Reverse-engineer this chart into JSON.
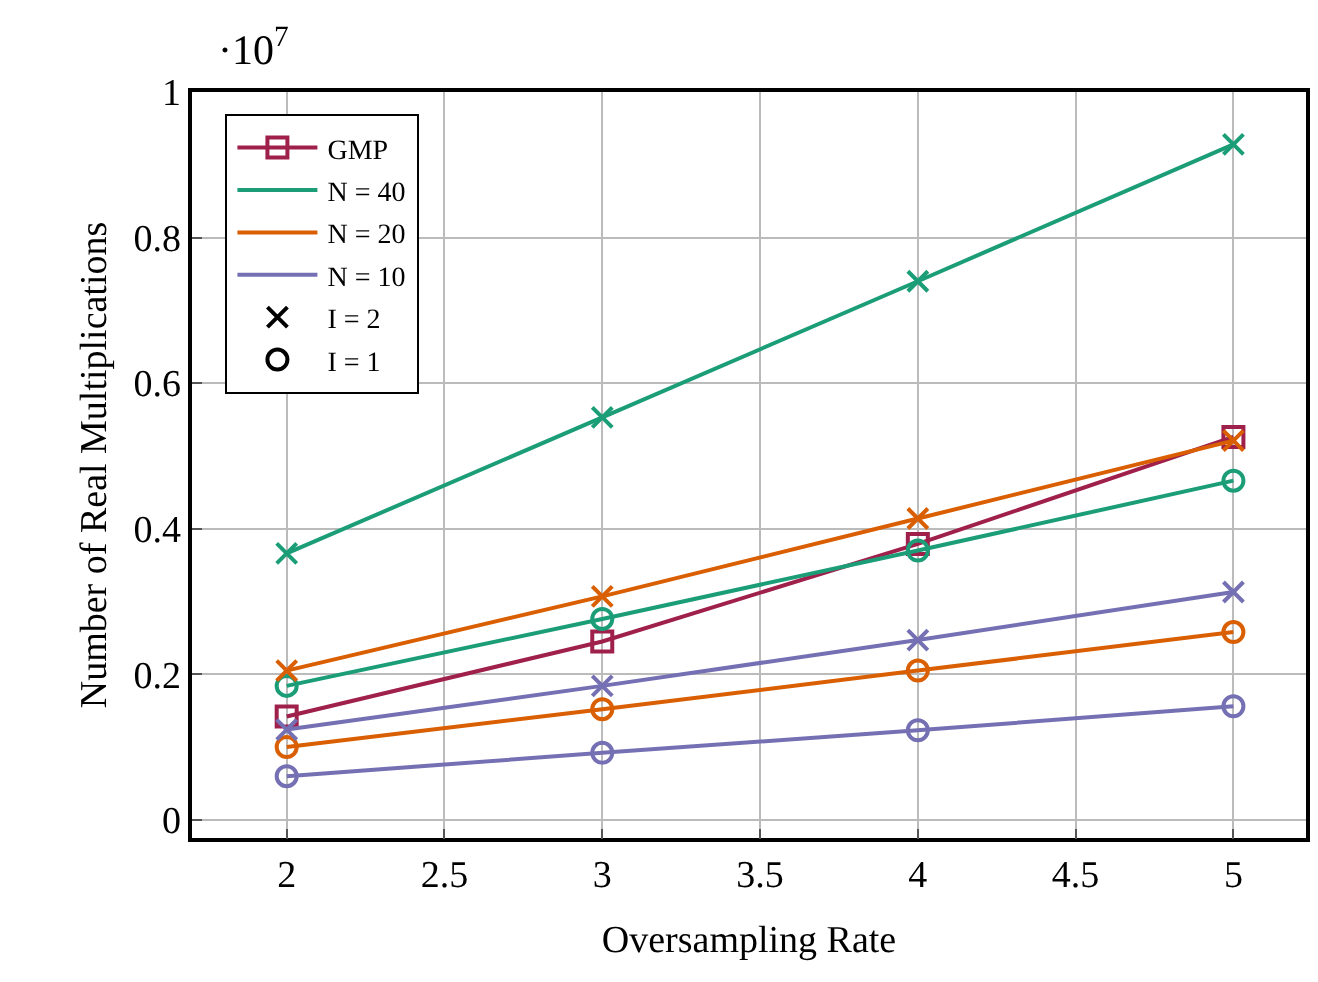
{
  "chart_data": {
    "type": "line",
    "xlabel": "Oversampling Rate",
    "ylabel": "Number of Real Multiplications",
    "annotations": [
      "·10$^{7}$"
    ],
    "x": [
      2,
      3,
      4,
      5
    ],
    "xlim": [
      1.7,
      5.23
    ],
    "xticks": [
      2,
      2.5,
      3,
      3.5,
      4,
      4.5,
      5
    ],
    "ylim": [
      -0.025,
      1.0
    ],
    "yticks": [
      0,
      0.2,
      0.4,
      0.6,
      0.8,
      1
    ],
    "grid": true,
    "legend": "top left",
    "line_style": "solid",
    "series": [
      {
        "name": "GMP",
        "color": "#a0204c",
        "marker": "square",
        "values": [
          0.142,
          0.245,
          0.379,
          0.526
        ]
      },
      {
        "name": "N = 40",
        "color": "#1b9e77",
        "marker": "none",
        "values": [
          null,
          null,
          null,
          null
        ]
      },
      {
        "name": "N = 20",
        "color": "#d95f02",
        "marker": "none",
        "values": [
          null,
          null,
          null,
          null
        ]
      },
      {
        "name": "N = 10",
        "color": "#7570b3",
        "marker": "none",
        "values": [
          null,
          null,
          null,
          null
        ]
      },
      {
        "name": "I = 2",
        "color": "#000000",
        "marker": "cross",
        "line_style": "none",
        "values": [
          null,
          null,
          null,
          null
        ]
      },
      {
        "name": "I = 1",
        "color": "#000000",
        "marker": "circle",
        "line_style": "none",
        "values": [
          null,
          null,
          null,
          null
        ]
      },
      {
        "color": "#1b9e77",
        "marker": "cross",
        "values": [
          0.366,
          0.553,
          0.74,
          0.928
        ]
      },
      {
        "color": "#1b9e77",
        "marker": "circle",
        "values": [
          0.184,
          0.276,
          0.37,
          0.466
        ]
      },
      {
        "color": "#d95f02",
        "marker": "cross",
        "values": [
          0.205,
          0.307,
          0.414,
          0.521
        ]
      },
      {
        "color": "#d95f02",
        "marker": "circle",
        "values": [
          0.1,
          0.152,
          0.205,
          0.258
        ]
      },
      {
        "color": "#7570b3",
        "marker": "cross",
        "values": [
          0.124,
          0.184,
          0.247,
          0.313
        ]
      },
      {
        "color": "#7570b3",
        "marker": "circle",
        "values": [
          0.06,
          0.092,
          0.123,
          0.156
        ]
      }
    ]
  }
}
